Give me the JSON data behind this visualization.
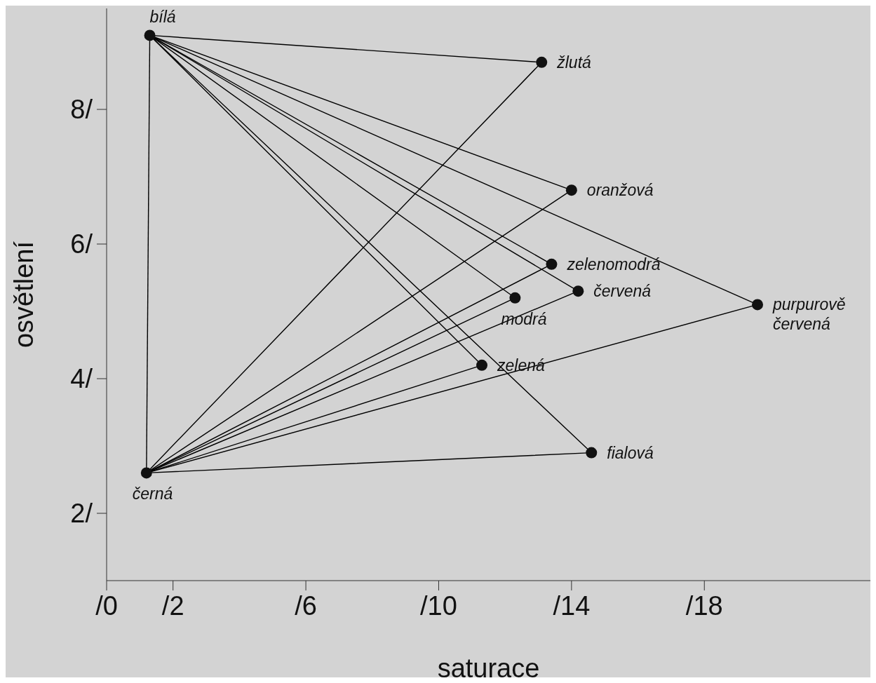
{
  "chart_data": {
    "type": "scatter",
    "xlabel": "saturace",
    "ylabel": "osvětlení",
    "xlim": [
      0,
      23
    ],
    "ylim": [
      1,
      9.5
    ],
    "xticks": [
      {
        "value": 0,
        "label": "/0"
      },
      {
        "value": 2,
        "label": "/2"
      },
      {
        "value": 6,
        "label": "/6"
      },
      {
        "value": 10,
        "label": "/10"
      },
      {
        "value": 14,
        "label": "/14"
      },
      {
        "value": 18,
        "label": "/18"
      }
    ],
    "yticks": [
      {
        "value": 2,
        "label": "2/"
      },
      {
        "value": 4,
        "label": "4/"
      },
      {
        "value": 6,
        "label": "6/"
      },
      {
        "value": 8,
        "label": "8/"
      }
    ],
    "line_style": "solid",
    "series": [
      {
        "type": "line",
        "color": "#000000",
        "x": [
          1.3,
          1.2
        ],
        "values": [
          9.1,
          2.6
        ]
      },
      {
        "type": "line",
        "color": "#000000",
        "x": [
          1.3,
          13.1,
          1.2
        ],
        "values": [
          9.1,
          8.7,
          2.6
        ]
      },
      {
        "type": "line",
        "color": "#000000",
        "x": [
          1.3,
          14.0,
          1.2
        ],
        "values": [
          9.1,
          6.8,
          2.6
        ]
      },
      {
        "type": "line",
        "color": "#000000",
        "x": [
          1.3,
          13.4,
          1.2
        ],
        "values": [
          9.1,
          5.7,
          2.6
        ]
      },
      {
        "type": "line",
        "color": "#000000",
        "x": [
          1.3,
          14.2,
          1.2
        ],
        "values": [
          9.1,
          5.3,
          2.6
        ]
      },
      {
        "type": "line",
        "color": "#000000",
        "x": [
          1.3,
          12.3,
          1.2
        ],
        "values": [
          9.1,
          5.2,
          2.6
        ]
      },
      {
        "type": "line",
        "color": "#000000",
        "x": [
          1.3,
          19.6,
          1.2
        ],
        "values": [
          9.1,
          5.1,
          2.6
        ]
      },
      {
        "type": "line",
        "color": "#000000",
        "x": [
          1.3,
          11.3,
          1.2
        ],
        "values": [
          9.1,
          4.2,
          2.6
        ]
      },
      {
        "type": "line",
        "color": "#000000",
        "x": [
          1.3,
          14.6,
          1.2
        ],
        "values": [
          9.1,
          2.9,
          2.6
        ]
      },
      {
        "marker": "circle",
        "color": "#111111",
        "x": [
          1.3,
          1.2,
          13.1,
          14.0,
          13.4,
          14.2,
          12.3,
          19.6,
          11.3,
          14.6
        ],
        "values": [
          9.1,
          2.6,
          8.7,
          6.8,
          5.7,
          5.3,
          5.2,
          5.1,
          4.2,
          2.9
        ]
      }
    ],
    "annotations": [
      {
        "text": "bílá",
        "x": 1.3,
        "y": 9.1
      },
      {
        "text": "černá",
        "x": 1.2,
        "y": 2.6
      },
      {
        "text": "žlutá",
        "x": 13.1,
        "y": 8.7
      },
      {
        "text": "oranžová",
        "x": 14.0,
        "y": 6.8
      },
      {
        "text": "zelenomodrá",
        "x": 13.4,
        "y": 5.7
      },
      {
        "text": "červená",
        "x": 14.2,
        "y": 5.3
      },
      {
        "text": "modrá",
        "x": 12.3,
        "y": 5.2
      },
      {
        "text": "purpurově\nčervená",
        "x": 19.6,
        "y": 5.1
      },
      {
        "text": "zelená",
        "x": 11.3,
        "y": 4.2
      },
      {
        "text": "fialová",
        "x": 14.6,
        "y": 2.9
      }
    ]
  }
}
